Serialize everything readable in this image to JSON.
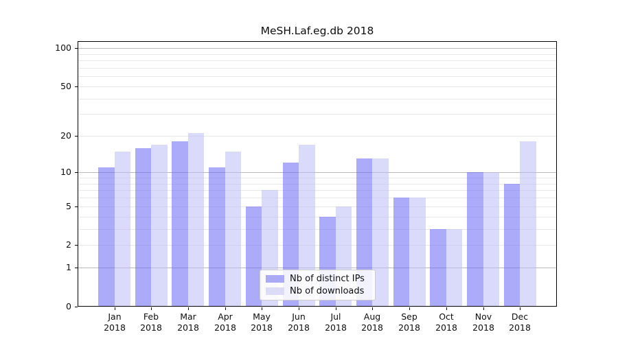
{
  "chart_data": {
    "type": "bar",
    "title": "MeSH.Laf.eg.db 2018",
    "year_label": "2018",
    "categories": [
      "Jan",
      "Feb",
      "Mar",
      "Apr",
      "May",
      "Jun",
      "Jul",
      "Aug",
      "Sep",
      "Oct",
      "Nov",
      "Dec"
    ],
    "series": [
      {
        "name": "Nb of distinct IPs",
        "color": "rgba(102,102,245,0.55)",
        "solid_color": "#aaaaf7",
        "values": [
          11,
          16,
          18,
          11,
          5,
          12,
          4,
          13,
          6,
          3,
          10,
          8
        ]
      },
      {
        "name": "Nb of downloads",
        "color": "rgba(187,187,245,0.55)",
        "solid_color": "#dcdcf9",
        "values": [
          15,
          17,
          21,
          15,
          7,
          17,
          5,
          13,
          6,
          3,
          10,
          18
        ]
      }
    ],
    "y_axis": {
      "scale": "log1p",
      "ticks": [
        0,
        1,
        2,
        5,
        10,
        20,
        50,
        100
      ],
      "major_gridlines": [
        1,
        10,
        100
      ],
      "minor_gridlines": [
        2,
        3,
        4,
        5,
        6,
        7,
        8,
        9,
        20,
        30,
        40,
        50,
        60,
        70,
        80,
        90
      ],
      "ylim": [
        0,
        113
      ]
    },
    "grid": true,
    "legend_position": "bottom-center",
    "colors": {
      "major_grid": "#b8b8b8",
      "minor_grid": "#e8e8e8",
      "axis": "#000000",
      "background": "#ffffff"
    }
  }
}
